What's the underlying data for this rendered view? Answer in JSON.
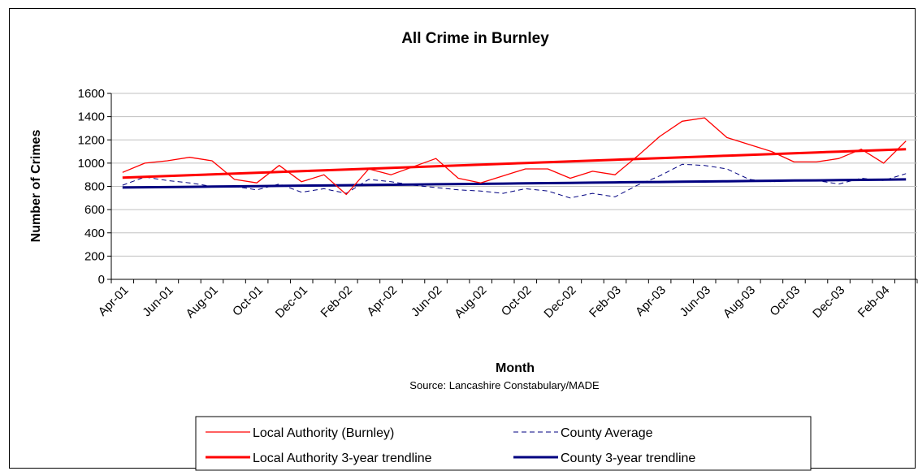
{
  "chart_data": {
    "type": "line",
    "title": "All Crime in Burnley",
    "xlabel": "Month",
    "ylabel": "Number of Crimes",
    "source": "Source: Lancashire Constabulary/MADE",
    "ylim": [
      0,
      1600
    ],
    "yticks": [
      0,
      200,
      400,
      600,
      800,
      1000,
      1200,
      1400,
      1600
    ],
    "xticklabels": [
      "Apr-01",
      "Jun-01",
      "Aug-01",
      "Oct-01",
      "Dec-01",
      "Feb-02",
      "Apr-02",
      "Jun-02",
      "Aug-02",
      "Oct-02",
      "Dec-02",
      "Feb-03",
      "Apr-03",
      "Jun-03",
      "Aug-03",
      "Oct-03",
      "Dec-03",
      "Feb-04"
    ],
    "x": [
      "Apr-01",
      "May-01",
      "Jun-01",
      "Jul-01",
      "Aug-01",
      "Sep-01",
      "Oct-01",
      "Nov-01",
      "Dec-01",
      "Jan-02",
      "Feb-02",
      "Mar-02",
      "Apr-02",
      "May-02",
      "Jun-02",
      "Jul-02",
      "Aug-02",
      "Sep-02",
      "Oct-02",
      "Nov-02",
      "Dec-02",
      "Jan-03",
      "Feb-03",
      "Mar-03",
      "Apr-03",
      "May-03",
      "Jun-03",
      "Jul-03",
      "Aug-03",
      "Sep-03",
      "Oct-03",
      "Nov-03",
      "Dec-03",
      "Jan-04",
      "Feb-04",
      "Mar-04"
    ],
    "grid": "horizontal",
    "legend_position": "bottom",
    "series": [
      {
        "name": "Local Authority (Burnley)",
        "style": "thin-solid",
        "color": "#ff0000",
        "values": [
          920,
          1000,
          1020,
          1050,
          1020,
          860,
          830,
          980,
          840,
          900,
          730,
          950,
          900,
          970,
          1040,
          870,
          830,
          890,
          950,
          950,
          870,
          930,
          900,
          1060,
          1230,
          1360,
          1390,
          1220,
          1160,
          1100,
          1010,
          1010,
          1040,
          1120,
          1000,
          1190
        ]
      },
      {
        "name": "County Average",
        "style": "dashed",
        "color": "#000080",
        "values": [
          810,
          880,
          850,
          830,
          800,
          800,
          770,
          820,
          750,
          780,
          740,
          860,
          840,
          810,
          790,
          770,
          760,
          740,
          780,
          760,
          700,
          740,
          710,
          810,
          890,
          990,
          980,
          950,
          860,
          840,
          850,
          850,
          820,
          870,
          850,
          910
        ]
      },
      {
        "name": "Local Authority 3-year trendline",
        "style": "thick-solid",
        "color": "#ff0000",
        "values": [
          875,
          882,
          889,
          896,
          903,
          910,
          917,
          924,
          931,
          938,
          945,
          952,
          959,
          966,
          973,
          980,
          987,
          994,
          1001,
          1008,
          1015,
          1022,
          1029,
          1036,
          1043,
          1050,
          1057,
          1064,
          1071,
          1078,
          1085,
          1092,
          1099,
          1106,
          1113,
          1120
        ]
      },
      {
        "name": "County 3-year trendline",
        "style": "thick-solid",
        "color": "#000080",
        "values": [
          790,
          792,
          794,
          796,
          798,
          800,
          802,
          804,
          806,
          808,
          810,
          812,
          814,
          816,
          818,
          820,
          822,
          824,
          826,
          828,
          830,
          832,
          834,
          836,
          838,
          840,
          842,
          844,
          846,
          848,
          850,
          852,
          854,
          856,
          858,
          860
        ]
      }
    ]
  }
}
